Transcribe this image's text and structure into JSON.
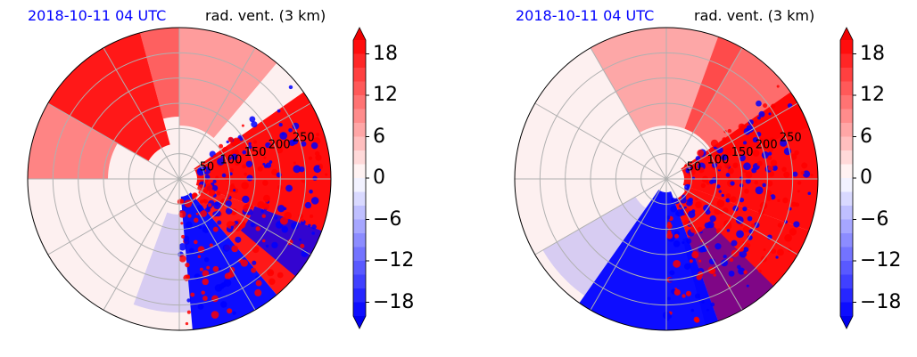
{
  "figure": {
    "panels": [
      {
        "time_label": "2018-10-11 04 UTC",
        "variable_label": "rad. vent. (3 km)"
      },
      {
        "time_label": "2018-10-11 04 UTC",
        "variable_label": "rad. vent. (3 km)"
      }
    ]
  },
  "colors": {
    "positive": "#ff0000",
    "negative": "#0000ff",
    "neutral": "#ffffff",
    "grid": "#b0b0b0"
  },
  "chart_data": [
    {
      "type": "heatmap",
      "projection": "polar",
      "title": "2018-10-11 04 UTC rad. vent. (3 km)",
      "range_rings": [
        50,
        100,
        150,
        200,
        250
      ],
      "range_max": 300,
      "radial_spokes_deg": [
        0,
        30,
        60,
        90,
        120,
        150,
        180,
        210,
        240,
        270,
        300,
        330
      ],
      "colorbar": {
        "ticks": [
          18,
          12,
          6,
          0,
          -6,
          -12,
          -18
        ],
        "tick_labels": [
          "18",
          "12",
          "6",
          "0",
          "−6",
          "−12",
          "−18"
        ],
        "vmin": -20,
        "vmax": 20,
        "extend": "both"
      },
      "grid": true
    },
    {
      "type": "heatmap",
      "projection": "polar",
      "title": "2018-10-11 04 UTC rad. vent. (3 km)",
      "range_rings": [
        50,
        100,
        150,
        200,
        250
      ],
      "range_max": 300,
      "radial_spokes_deg": [
        0,
        30,
        60,
        90,
        120,
        150,
        180,
        210,
        240,
        270,
        300,
        330
      ],
      "colorbar": {
        "ticks": [
          18,
          12,
          6,
          0,
          -6,
          -12,
          -18
        ],
        "tick_labels": [
          "18",
          "12",
          "6",
          "0",
          "−6",
          "−12",
          "−18"
        ],
        "vmin": -20,
        "vmax": 20,
        "extend": "both"
      },
      "grid": true
    }
  ]
}
